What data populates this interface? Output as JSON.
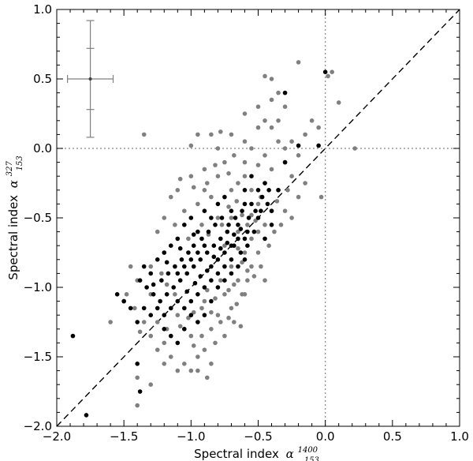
{
  "chart_data": {
    "type": "scatter",
    "title": "",
    "xlabel": {
      "text": "Spectral index",
      "symbol": "α",
      "sup": "1400",
      "sub": "153"
    },
    "ylabel": {
      "text": "Spectral index",
      "symbol": "α",
      "sup": "327",
      "sub": "153"
    },
    "xlim": [
      -2.0,
      1.0
    ],
    "ylim": [
      -2.0,
      1.0
    ],
    "xticks": [
      -2.0,
      -1.5,
      -1.0,
      -0.5,
      0.0,
      0.5,
      1.0
    ],
    "yticks": [
      -2.0,
      -1.5,
      -1.0,
      -0.5,
      0.0,
      0.5,
      1.0
    ],
    "xtick_labels": [
      "−2.0",
      "−1.5",
      "−1.0",
      "−0.5",
      "0.0",
      "0.5",
      "1.0"
    ],
    "ytick_labels": [
      "−2.0",
      "−1.5",
      "−1.0",
      "−0.5",
      "0.0",
      "0.5",
      "1.0"
    ],
    "grid": false,
    "reference_lines": [
      {
        "type": "diagonal",
        "style": "dashed",
        "from": [
          -2.0,
          -2.0
        ],
        "to": [
          1.0,
          1.0
        ]
      },
      {
        "type": "vertical",
        "style": "dotted",
        "x": 0.0
      },
      {
        "type": "horizontal",
        "style": "dotted",
        "y": 0.0
      }
    ],
    "error_bar": {
      "x": -1.75,
      "y": 0.5,
      "x_err": 0.17,
      "y_err_outer": 0.42,
      "y_err_inner": 0.22
    },
    "series": [
      {
        "color": "#808080",
        "points": [
          [
            -1.1,
            -0.3
          ],
          [
            -1.0,
            -0.2
          ],
          [
            -0.9,
            -0.15
          ],
          [
            -0.85,
            0.1
          ],
          [
            -0.7,
            0.1
          ],
          [
            -0.6,
            0.25
          ],
          [
            -0.5,
            0.3
          ],
          [
            -0.45,
            0.52
          ],
          [
            -0.4,
            0.5
          ],
          [
            -0.35,
            0.4
          ],
          [
            -0.4,
            0.35
          ],
          [
            -0.3,
            0.3
          ],
          [
            -0.2,
            0.62
          ],
          [
            -0.45,
            0.2
          ],
          [
            -0.5,
            0.15
          ],
          [
            -0.35,
            0.2
          ],
          [
            -0.6,
            0.05
          ],
          [
            -0.55,
            0.0
          ],
          [
            -0.6,
            -0.1
          ],
          [
            -0.45,
            -0.05
          ],
          [
            -0.4,
            0.15
          ],
          [
            -0.35,
            0.05
          ],
          [
            -0.3,
            -0.1
          ],
          [
            -0.25,
            -0.2
          ],
          [
            -0.2,
            -0.05
          ],
          [
            -0.15,
            0.1
          ],
          [
            -0.05,
            0.15
          ],
          [
            -0.1,
            0.2
          ],
          [
            0.02,
            0.52
          ],
          [
            0.05,
            0.55
          ],
          [
            0.1,
            0.33
          ],
          [
            0.22,
            0.0
          ],
          [
            -0.03,
            -0.35
          ],
          [
            -0.35,
            -0.3
          ],
          [
            -0.4,
            -0.45
          ],
          [
            -0.45,
            -0.55
          ],
          [
            -0.5,
            -0.4
          ],
          [
            -0.55,
            -0.3
          ],
          [
            -0.6,
            -0.2
          ],
          [
            -0.65,
            -0.25
          ],
          [
            -0.7,
            -0.3
          ],
          [
            -0.7,
            -0.5
          ],
          [
            -0.65,
            -0.6
          ],
          [
            -0.6,
            -0.75
          ],
          [
            -0.55,
            -0.65
          ],
          [
            -0.5,
            -0.6
          ],
          [
            -0.75,
            -0.7
          ],
          [
            -0.8,
            -0.5
          ],
          [
            -0.85,
            -0.35
          ],
          [
            -0.8,
            -0.2
          ],
          [
            -0.75,
            -0.1
          ],
          [
            -0.9,
            -0.3
          ],
          [
            -0.95,
            -0.4
          ],
          [
            -1.05,
            -0.45
          ],
          [
            -1.15,
            -0.35
          ],
          [
            -1.2,
            -0.5
          ],
          [
            -1.25,
            -0.6
          ],
          [
            -0.7,
            -0.85
          ],
          [
            -0.65,
            -0.95
          ],
          [
            -0.6,
            -1.05
          ],
          [
            -0.7,
            -1.15
          ],
          [
            -0.75,
            -1.05
          ],
          [
            -0.8,
            -1.2
          ],
          [
            -0.85,
            -1.3
          ],
          [
            -0.9,
            -1.1
          ],
          [
            -0.95,
            -1.25
          ],
          [
            -1.0,
            -1.35
          ],
          [
            -1.05,
            -1.3
          ],
          [
            -1.1,
            -1.2
          ],
          [
            -1.15,
            -1.15
          ],
          [
            -0.9,
            -1.45
          ],
          [
            -0.85,
            -1.55
          ],
          [
            -0.95,
            -1.6
          ],
          [
            -1.0,
            -1.6
          ],
          [
            -1.1,
            -1.6
          ],
          [
            -1.2,
            -1.55
          ],
          [
            -1.25,
            -1.45
          ],
          [
            -1.3,
            -1.35
          ],
          [
            -1.3,
            -1.7
          ],
          [
            -1.4,
            -1.85
          ],
          [
            -1.4,
            -1.65
          ],
          [
            -1.6,
            -1.25
          ],
          [
            -1.5,
            -1.1
          ],
          [
            -1.35,
            0.1
          ],
          [
            -1.4,
            -0.95
          ],
          [
            -1.3,
            -0.85
          ],
          [
            -1.2,
            -0.75
          ],
          [
            -1.3,
            -1.05
          ],
          [
            -1.35,
            -1.25
          ],
          [
            -1.2,
            -1.4
          ],
          [
            -1.15,
            -1.5
          ],
          [
            -1.05,
            -1.55
          ],
          [
            -0.95,
            -1.5
          ],
          [
            -0.88,
            -1.65
          ],
          [
            -0.82,
            -1.4
          ],
          [
            -0.78,
            -1.25
          ],
          [
            -0.75,
            -1.35
          ],
          [
            -0.68,
            -1.25
          ],
          [
            -0.62,
            -1.05
          ],
          [
            -0.58,
            -0.95
          ],
          [
            -0.55,
            -0.85
          ],
          [
            -0.5,
            -0.75
          ],
          [
            -0.48,
            -0.85
          ],
          [
            -0.45,
            -0.95
          ],
          [
            -0.42,
            -0.7
          ],
          [
            -0.38,
            -0.6
          ],
          [
            -0.33,
            -0.55
          ],
          [
            -0.3,
            -0.45
          ],
          [
            -0.28,
            -0.3
          ],
          [
            -0.25,
            -0.5
          ],
          [
            -0.2,
            -0.35
          ],
          [
            -0.15,
            -0.25
          ],
          [
            -0.3,
            0.0
          ],
          [
            -0.25,
            0.05
          ],
          [
            -0.8,
            0.0
          ],
          [
            -1.0,
            0.02
          ],
          [
            -0.95,
            0.1
          ],
          [
            -0.78,
            0.12
          ],
          [
            -0.68,
            -0.05
          ],
          [
            -0.72,
            -0.18
          ],
          [
            -0.82,
            -0.12
          ],
          [
            -0.88,
            -0.25
          ],
          [
            -0.98,
            -0.28
          ],
          [
            -1.08,
            -0.22
          ],
          [
            -1.12,
            -0.55
          ],
          [
            -1.02,
            -0.65
          ],
          [
            -0.92,
            -0.55
          ],
          [
            -0.87,
            -0.62
          ],
          [
            -0.77,
            -0.55
          ],
          [
            -0.72,
            -0.42
          ],
          [
            -0.66,
            -0.38
          ],
          [
            -0.62,
            -0.48
          ],
          [
            -0.58,
            -0.55
          ],
          [
            -0.55,
            -0.48
          ],
          [
            -0.52,
            -0.52
          ],
          [
            -0.48,
            -0.35
          ],
          [
            -0.65,
            -0.72
          ],
          [
            -0.62,
            -0.82
          ],
          [
            -0.58,
            -0.88
          ],
          [
            -0.53,
            -0.92
          ],
          [
            -0.68,
            -0.98
          ],
          [
            -0.72,
            -1.02
          ],
          [
            -0.78,
            -0.95
          ],
          [
            -0.82,
            -1.08
          ],
          [
            -0.88,
            -1.02
          ],
          [
            -0.92,
            -1.15
          ],
          [
            -0.98,
            -1.18
          ],
          [
            -1.02,
            -1.22
          ],
          [
            -1.08,
            -1.28
          ],
          [
            -1.12,
            -1.05
          ],
          [
            -1.18,
            -0.98
          ],
          [
            -1.22,
            -0.9
          ],
          [
            -0.72,
            -1.22
          ],
          [
            -0.66,
            -1.12
          ],
          [
            -0.63,
            -1.28
          ],
          [
            -0.85,
            -1.18
          ],
          [
            -0.92,
            -1.35
          ],
          [
            -0.98,
            -1.42
          ],
          [
            -1.18,
            -1.3
          ],
          [
            -1.25,
            -1.25
          ],
          [
            -1.45,
            -0.85
          ],
          [
            -1.48,
            -1.05
          ],
          [
            -1.42,
            -1.15
          ],
          [
            -1.38,
            -1.32
          ],
          [
            -0.45,
            -0.25
          ],
          [
            -0.4,
            -0.15
          ],
          [
            -0.36,
            -0.38
          ],
          [
            -0.5,
            -0.12
          ]
        ]
      },
      {
        "color": "#000000",
        "points": [
          [
            0.0,
            0.55
          ],
          [
            -0.3,
            0.4
          ],
          [
            -0.2,
            0.02
          ],
          [
            -0.05,
            0.02
          ],
          [
            -0.3,
            -0.1
          ],
          [
            -0.35,
            -0.3
          ],
          [
            -0.5,
            -0.3
          ],
          [
            -0.55,
            -0.2
          ],
          [
            -0.55,
            -0.4
          ],
          [
            -0.6,
            -0.4
          ],
          [
            -0.5,
            -0.5
          ],
          [
            -0.4,
            -0.55
          ],
          [
            -0.45,
            -0.65
          ],
          [
            -0.6,
            -0.65
          ],
          [
            -0.65,
            -0.55
          ],
          [
            -0.7,
            -0.45
          ],
          [
            -0.75,
            -0.35
          ],
          [
            -0.8,
            -0.4
          ],
          [
            -0.85,
            -0.5
          ],
          [
            -0.9,
            -0.45
          ],
          [
            -0.95,
            -0.6
          ],
          [
            -1.0,
            -0.5
          ],
          [
            -1.05,
            -0.55
          ],
          [
            -1.1,
            -0.65
          ],
          [
            -1.15,
            -0.7
          ],
          [
            -1.2,
            -0.75
          ],
          [
            -1.25,
            -0.8
          ],
          [
            -1.3,
            -0.9
          ],
          [
            -1.35,
            -0.85
          ],
          [
            -1.38,
            -0.95
          ],
          [
            -1.33,
            -1.0
          ],
          [
            -1.28,
            -1.05
          ],
          [
            -1.23,
            -1.1
          ],
          [
            -1.18,
            -1.05
          ],
          [
            -1.13,
            -1.0
          ],
          [
            -1.08,
            -0.95
          ],
          [
            -1.03,
            -0.9
          ],
          [
            -0.98,
            -0.85
          ],
          [
            -0.93,
            -0.8
          ],
          [
            -0.88,
            -0.75
          ],
          [
            -0.83,
            -0.7
          ],
          [
            -0.78,
            -0.65
          ],
          [
            -0.73,
            -0.6
          ],
          [
            -0.68,
            -0.7
          ],
          [
            -0.63,
            -0.75
          ],
          [
            -0.58,
            -0.7
          ],
          [
            -0.53,
            -0.6
          ],
          [
            -0.48,
            -0.45
          ],
          [
            -0.43,
            -0.4
          ],
          [
            -0.7,
            -0.8
          ],
          [
            -0.75,
            -0.85
          ],
          [
            -0.8,
            -0.9
          ],
          [
            -0.85,
            -0.95
          ],
          [
            -0.9,
            -1.0
          ],
          [
            -0.95,
            -1.05
          ],
          [
            -1.0,
            -1.1
          ],
          [
            -1.05,
            -1.15
          ],
          [
            -1.1,
            -1.1
          ],
          [
            -1.15,
            -1.15
          ],
          [
            -1.2,
            -1.2
          ],
          [
            -1.25,
            -1.15
          ],
          [
            -1.3,
            -1.2
          ],
          [
            -1.35,
            -1.15
          ],
          [
            -1.4,
            -1.25
          ],
          [
            -1.45,
            -1.15
          ],
          [
            -1.5,
            -1.1
          ],
          [
            -1.55,
            -1.05
          ],
          [
            -1.0,
            -1.2
          ],
          [
            -1.05,
            -1.3
          ],
          [
            -0.95,
            -1.25
          ],
          [
            -0.9,
            -1.2
          ],
          [
            -0.85,
            -1.1
          ],
          [
            -0.8,
            -1.0
          ],
          [
            -0.75,
            -0.95
          ],
          [
            -0.7,
            -0.9
          ],
          [
            -0.65,
            -0.85
          ],
          [
            -0.6,
            -0.8
          ],
          [
            -0.98,
            -0.7
          ],
          [
            -1.02,
            -0.75
          ],
          [
            -1.07,
            -0.8
          ],
          [
            -1.12,
            -0.85
          ],
          [
            -1.17,
            -0.9
          ],
          [
            -1.22,
            -0.95
          ],
          [
            -0.92,
            -0.65
          ],
          [
            -0.87,
            -0.6
          ],
          [
            -0.82,
            -0.55
          ],
          [
            -0.77,
            -0.5
          ],
          [
            -0.72,
            -0.55
          ],
          [
            -0.67,
            -0.5
          ],
          [
            -0.62,
            -0.45
          ],
          [
            -0.57,
            -0.5
          ],
          [
            -0.52,
            -0.45
          ],
          [
            -0.47,
            -0.35
          ],
          [
            -0.42,
            -0.3
          ],
          [
            -0.9,
            -0.7
          ],
          [
            -0.95,
            -0.75
          ],
          [
            -1.0,
            -0.8
          ],
          [
            -1.05,
            -0.85
          ],
          [
            -1.1,
            -0.9
          ],
          [
            -0.85,
            -0.85
          ],
          [
            -0.8,
            -0.8
          ],
          [
            -0.75,
            -0.75
          ],
          [
            -0.7,
            -0.7
          ],
          [
            -0.65,
            -0.65
          ],
          [
            -1.4,
            -1.55
          ],
          [
            -1.38,
            -1.75
          ],
          [
            -1.88,
            -1.35
          ],
          [
            -1.78,
            -1.92
          ],
          [
            -1.15,
            -1.35
          ],
          [
            -1.1,
            -1.4
          ],
          [
            -1.2,
            -1.3
          ],
          [
            -0.93,
            -0.92
          ],
          [
            -0.97,
            -0.97
          ],
          [
            -1.03,
            -1.03
          ],
          [
            -0.88,
            -0.88
          ],
          [
            -0.83,
            -0.78
          ],
          [
            -0.78,
            -0.72
          ],
          [
            -0.73,
            -0.68
          ],
          [
            -0.68,
            -0.62
          ],
          [
            -0.63,
            -0.58
          ],
          [
            -0.58,
            -0.6
          ],
          [
            -0.98,
            -0.62
          ],
          [
            -1.08,
            -0.72
          ],
          [
            -1.18,
            -0.82
          ],
          [
            -1.28,
            -0.98
          ],
          [
            -0.6,
            -0.3
          ],
          [
            -0.45,
            -0.25
          ],
          [
            -0.4,
            -0.45
          ]
        ]
      }
    ]
  }
}
